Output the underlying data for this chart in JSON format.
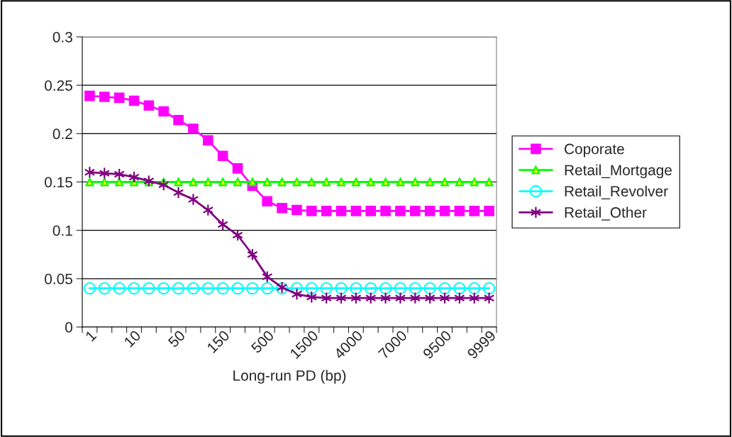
{
  "chart_data": {
    "type": "line",
    "xlabel": "Long-run PD (bp)",
    "categories": [
      "1",
      null,
      null,
      "10",
      null,
      null,
      "50",
      null,
      null,
      "150",
      null,
      null,
      "500",
      null,
      null,
      "1500",
      null,
      null,
      "4000",
      null,
      null,
      "7000",
      null,
      null,
      "9500",
      null,
      null,
      "9999"
    ],
    "series": [
      {
        "name": "Coporate",
        "color": "#ff00ff",
        "marker": "square",
        "values": [
          0.239,
          0.238,
          0.237,
          0.234,
          0.229,
          0.223,
          0.214,
          0.205,
          0.193,
          0.177,
          0.164,
          0.146,
          0.13,
          0.123,
          0.121,
          0.12,
          0.12,
          0.12,
          0.12,
          0.12,
          0.12,
          0.12,
          0.12,
          0.12,
          0.12,
          0.12,
          0.12,
          0.12
        ]
      },
      {
        "name": "Retail_Mortgage",
        "color": "#00ff00",
        "marker": "triangle",
        "values": [
          0.15,
          0.15,
          0.15,
          0.15,
          0.15,
          0.15,
          0.15,
          0.15,
          0.15,
          0.15,
          0.15,
          0.15,
          0.15,
          0.15,
          0.15,
          0.15,
          0.15,
          0.15,
          0.15,
          0.15,
          0.15,
          0.15,
          0.15,
          0.15,
          0.15,
          0.15,
          0.15,
          0.15
        ]
      },
      {
        "name": "Retail_Revolver",
        "color": "#00ffff",
        "marker": "circle",
        "values": [
          0.04,
          0.04,
          0.04,
          0.04,
          0.04,
          0.04,
          0.04,
          0.04,
          0.04,
          0.04,
          0.04,
          0.04,
          0.04,
          0.04,
          0.04,
          0.04,
          0.04,
          0.04,
          0.04,
          0.04,
          0.04,
          0.04,
          0.04,
          0.04,
          0.04,
          0.04,
          0.04,
          0.04
        ]
      },
      {
        "name": "Retail_Other",
        "color": "#800080",
        "marker": "cross",
        "values": [
          0.16,
          0.159,
          0.158,
          0.155,
          0.151,
          0.147,
          0.139,
          0.132,
          0.121,
          0.106,
          0.095,
          0.075,
          0.052,
          0.041,
          0.034,
          0.031,
          0.03,
          0.03,
          0.03,
          0.03,
          0.03,
          0.03,
          0.03,
          0.03,
          0.03,
          0.03,
          0.03,
          0.03
        ]
      }
    ],
    "ylim": [
      0,
      0.3
    ],
    "yticks": [
      0,
      0.05,
      0.1,
      0.15,
      0.2,
      0.25,
      0.3
    ],
    "grid": "y",
    "legend": "right",
    "line_style": "solid"
  }
}
